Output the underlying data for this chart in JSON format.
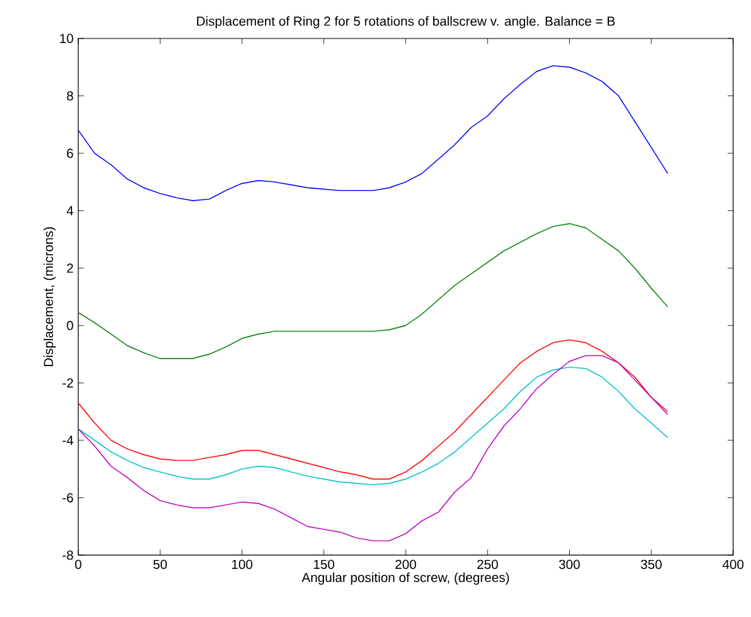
{
  "chart_data": {
    "type": "line",
    "title": "Displacement of Ring 2 for 5 rotations of ballscrew v. angle.  Balance = B",
    "xlabel": "Angular position of screw, (degrees)",
    "ylabel": "Displacement, (microns)",
    "x": [
      0,
      10,
      20,
      30,
      40,
      50,
      60,
      70,
      80,
      90,
      100,
      110,
      120,
      130,
      140,
      150,
      160,
      170,
      180,
      190,
      200,
      210,
      220,
      230,
      240,
      250,
      260,
      270,
      280,
      290,
      300,
      310,
      320,
      330,
      340,
      350,
      360
    ],
    "series": [
      {
        "color": "#0000ff",
        "values": [
          6.8,
          6.0,
          5.6,
          5.1,
          4.8,
          4.6,
          4.45,
          4.35,
          4.4,
          4.7,
          4.95,
          5.05,
          5.0,
          4.9,
          4.8,
          4.75,
          4.7,
          4.7,
          4.7,
          4.8,
          5.0,
          5.3,
          5.8,
          6.3,
          6.9,
          7.3,
          7.9,
          8.4,
          8.85,
          9.05,
          9.0,
          8.8,
          8.5,
          8.0,
          7.1,
          6.2,
          5.3
        ]
      },
      {
        "color": "#008000",
        "values": [
          0.45,
          0.1,
          -0.3,
          -0.7,
          -0.95,
          -1.15,
          -1.15,
          -1.15,
          -1.0,
          -0.75,
          -0.45,
          -0.3,
          -0.2,
          -0.2,
          -0.2,
          -0.2,
          -0.2,
          -0.2,
          -0.2,
          -0.15,
          0.0,
          0.4,
          0.9,
          1.4,
          1.8,
          2.2,
          2.6,
          2.9,
          3.2,
          3.45,
          3.55,
          3.4,
          3.0,
          2.6,
          2.0,
          1.3,
          0.65
        ]
      },
      {
        "color": "#ff0000",
        "values": [
          -2.7,
          -3.4,
          -4.0,
          -4.3,
          -4.5,
          -4.65,
          -4.7,
          -4.7,
          -4.6,
          -4.5,
          -4.35,
          -4.35,
          -4.5,
          -4.65,
          -4.8,
          -4.95,
          -5.1,
          -5.2,
          -5.35,
          -5.35,
          -5.1,
          -4.7,
          -4.2,
          -3.7,
          -3.1,
          -2.5,
          -1.9,
          -1.3,
          -0.9,
          -0.6,
          -0.5,
          -0.6,
          -0.9,
          -1.3,
          -1.8,
          -2.5,
          -3.0
        ]
      },
      {
        "color": "#00bfbf",
        "values": [
          -3.6,
          -4.0,
          -4.4,
          -4.7,
          -4.95,
          -5.1,
          -5.25,
          -5.35,
          -5.35,
          -5.2,
          -5.0,
          -4.9,
          -4.95,
          -5.1,
          -5.25,
          -5.35,
          -5.45,
          -5.5,
          -5.55,
          -5.5,
          -5.35,
          -5.1,
          -4.8,
          -4.4,
          -3.9,
          -3.4,
          -2.9,
          -2.3,
          -1.8,
          -1.55,
          -1.45,
          -1.5,
          -1.8,
          -2.3,
          -2.9,
          -3.4,
          -3.9
        ]
      },
      {
        "color": "#bf00bf",
        "values": [
          -3.6,
          -4.2,
          -4.9,
          -5.3,
          -5.75,
          -6.1,
          -6.25,
          -6.35,
          -6.35,
          -6.25,
          -6.15,
          -6.2,
          -6.4,
          -6.7,
          -7.0,
          -7.1,
          -7.2,
          -7.4,
          -7.5,
          -7.5,
          -7.25,
          -6.8,
          -6.5,
          -5.8,
          -5.3,
          -4.3,
          -3.5,
          -2.9,
          -2.2,
          -1.7,
          -1.25,
          -1.05,
          -1.05,
          -1.3,
          -1.9,
          -2.5,
          -3.1
        ]
      }
    ],
    "xlim": [
      0,
      400
    ],
    "ylim": [
      -8,
      10
    ],
    "xticks": [
      0,
      50,
      100,
      150,
      200,
      250,
      300,
      350,
      400
    ],
    "yticks": [
      -8,
      -6,
      -4,
      -2,
      0,
      2,
      4,
      6,
      8,
      10
    ],
    "grid": false,
    "marker": "none",
    "line_style": "solid"
  }
}
